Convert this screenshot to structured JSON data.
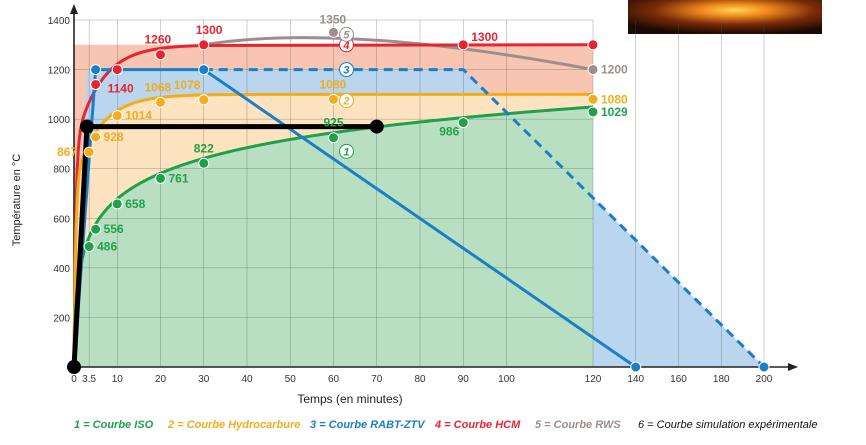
{
  "chart_data": {
    "type": "line",
    "xlabel": "Temps (en minutes)",
    "ylabel": "Température en °C",
    "xlim": [
      0,
      210
    ],
    "ylim": [
      0,
      1400
    ],
    "x_ticks": [
      "0",
      "3.5",
      "10",
      "20",
      "30",
      "40",
      "50",
      "60",
      "70",
      "80",
      "90",
      "100",
      "120",
      "140",
      "160",
      "180",
      "200"
    ],
    "x_tick_values": [
      0,
      3.5,
      10,
      20,
      30,
      40,
      50,
      60,
      70,
      80,
      90,
      100,
      120,
      140,
      160,
      180,
      200
    ],
    "y_ticks": [
      0,
      200,
      400,
      600,
      800,
      1000,
      1200,
      1400
    ],
    "y_tick_labels": [
      "",
      "200",
      "400",
      "600",
      "800",
      "1000",
      "1200",
      "1400"
    ],
    "grid": true,
    "legend_position": "bottom",
    "series": [
      {
        "name": "1 = Courbe ISO",
        "badge": "1",
        "color": "#1fa14b",
        "fill": "#b9dfc3",
        "x": [
          0,
          5,
          10,
          20,
          30,
          60,
          90,
          120
        ],
        "y": [
          0,
          556,
          658,
          761,
          822,
          925,
          986,
          1029
        ],
        "markers": [
          {
            "x": 3.5,
            "y": 486
          },
          {
            "x": 5,
            "y": 556
          },
          {
            "x": 10,
            "y": 658
          },
          {
            "x": 20,
            "y": 761
          },
          {
            "x": 30,
            "y": 822
          },
          {
            "x": 60,
            "y": 925
          },
          {
            "x": 90,
            "y": 986
          },
          {
            "x": 120,
            "y": 1029
          }
        ],
        "labels": [
          {
            "x": 3.5,
            "y": 486,
            "text": "486"
          },
          {
            "x": 5,
            "y": 556,
            "text": "556"
          },
          {
            "x": 10,
            "y": 658,
            "text": "658"
          },
          {
            "x": 20,
            "y": 761,
            "text": "761"
          },
          {
            "x": 30,
            "y": 822,
            "text": "822"
          },
          {
            "x": 60,
            "y": 925,
            "text": "925"
          },
          {
            "x": 90,
            "y": 986,
            "text": "986"
          },
          {
            "x": 120,
            "y": 1029,
            "text": "1029"
          }
        ]
      },
      {
        "name": "2 = Courbe Hydrocarbure",
        "badge": "2",
        "color": "#f2ac1c",
        "fill": "#fde3bf",
        "x": [
          0,
          3.5,
          5,
          10,
          20,
          30,
          60,
          120
        ],
        "y": [
          0,
          867,
          928,
          1014,
          1068,
          1078,
          1080,
          1080
        ],
        "markers": [
          {
            "x": 3.5,
            "y": 867
          },
          {
            "x": 5,
            "y": 928
          },
          {
            "x": 10,
            "y": 1014
          },
          {
            "x": 20,
            "y": 1068
          },
          {
            "x": 30,
            "y": 1078
          },
          {
            "x": 60,
            "y": 1080
          },
          {
            "x": 120,
            "y": 1080
          }
        ],
        "labels": [
          {
            "x": 3.5,
            "y": 867,
            "text": "867"
          },
          {
            "x": 5,
            "y": 928,
            "text": "928"
          },
          {
            "x": 10,
            "y": 1014,
            "text": "1014"
          },
          {
            "x": 20,
            "y": 1068,
            "text": "1068"
          },
          {
            "x": 30,
            "y": 1078,
            "text": "1078"
          },
          {
            "x": 60,
            "y": 1080,
            "text": "1080"
          },
          {
            "x": 120,
            "y": 1080,
            "text": "1080"
          }
        ]
      },
      {
        "name": "3 = Courbe RABT-ZTV",
        "badge": "3",
        "color": "#1a7ec8",
        "fill": "#bad5ee",
        "x": [
          0,
          5,
          30,
          140
        ],
        "y": [
          0,
          1200,
          1200,
          0
        ],
        "dashed_x": [
          30,
          90,
          200
        ],
        "dashed_y": [
          1200,
          1200,
          0
        ],
        "markers": [
          {
            "x": 5,
            "y": 1200
          },
          {
            "x": 30,
            "y": 1200
          },
          {
            "x": 140,
            "y": 0
          },
          {
            "x": 200,
            "y": 0
          }
        ],
        "labels": []
      },
      {
        "name": "4 = Courbe HCM",
        "badge": "4",
        "color": "#e52531",
        "fill": "#f7c5b1",
        "x": [
          0,
          5,
          10,
          20,
          30,
          90,
          120
        ],
        "y": [
          0,
          1140,
          1200,
          1260,
          1300,
          1300,
          1300
        ],
        "markers": [
          {
            "x": 5,
            "y": 1140
          },
          {
            "x": 10,
            "y": 1200
          },
          {
            "x": 20,
            "y": 1260
          },
          {
            "x": 30,
            "y": 1300
          },
          {
            "x": 90,
            "y": 1300
          },
          {
            "x": 120,
            "y": 1300
          }
        ],
        "labels": [
          {
            "x": 5,
            "y": 1140,
            "text": "1140"
          },
          {
            "x": 20,
            "y": 1260,
            "text": "1260"
          },
          {
            "x": 30,
            "y": 1300,
            "text": "1300"
          },
          {
            "x": 90,
            "y": 1300,
            "text": "1300"
          }
        ]
      },
      {
        "name": "5 = Courbe RWS",
        "badge": "5",
        "color": "#9a8f8d",
        "x": [
          30,
          60,
          90,
          120
        ],
        "y": [
          1300,
          1350,
          1300,
          1200
        ],
        "markers": [
          {
            "x": 60,
            "y": 1350
          },
          {
            "x": 120,
            "y": 1200
          }
        ],
        "labels": [
          {
            "x": 60,
            "y": 1350,
            "text": "1350"
          },
          {
            "x": 120,
            "y": 1200,
            "text": "1200"
          }
        ]
      },
      {
        "name": "6 = Courbe simulation expérimentale",
        "color": "#000000",
        "x": [
          0,
          3,
          70
        ],
        "y": [
          0,
          970,
          970
        ],
        "markers": [
          {
            "x": 0,
            "y": 0
          },
          {
            "x": 3,
            "y": 970
          },
          {
            "x": 70,
            "y": 970
          }
        ],
        "labels": []
      }
    ],
    "badges": [
      {
        "text": "1",
        "x": 63,
        "y": 870,
        "series": 0
      },
      {
        "text": "2",
        "x": 63,
        "y": 1075,
        "series": 1
      },
      {
        "text": "3",
        "x": 63,
        "y": 1200,
        "series": 2
      },
      {
        "text": "4",
        "x": 63,
        "y": 1300,
        "series": 3
      },
      {
        "text": "5",
        "x": 63,
        "y": 1342,
        "series": 4
      }
    ]
  },
  "legend": [
    {
      "text": "1 = Courbe ISO",
      "color": "#1fa14b"
    },
    {
      "text": "2 = Courbe Hydrocarbure",
      "color": "#f2ac1c"
    },
    {
      "text": "3 = Courbe RABT-ZTV",
      "color": "#1a7ec8"
    },
    {
      "text": "4 = Courbe HCM",
      "color": "#e52531"
    },
    {
      "text": "5 = Courbe RWS",
      "color": "#9a8f8d"
    }
  ],
  "legend_extra": "6 = Courbe simulation expérimentale"
}
